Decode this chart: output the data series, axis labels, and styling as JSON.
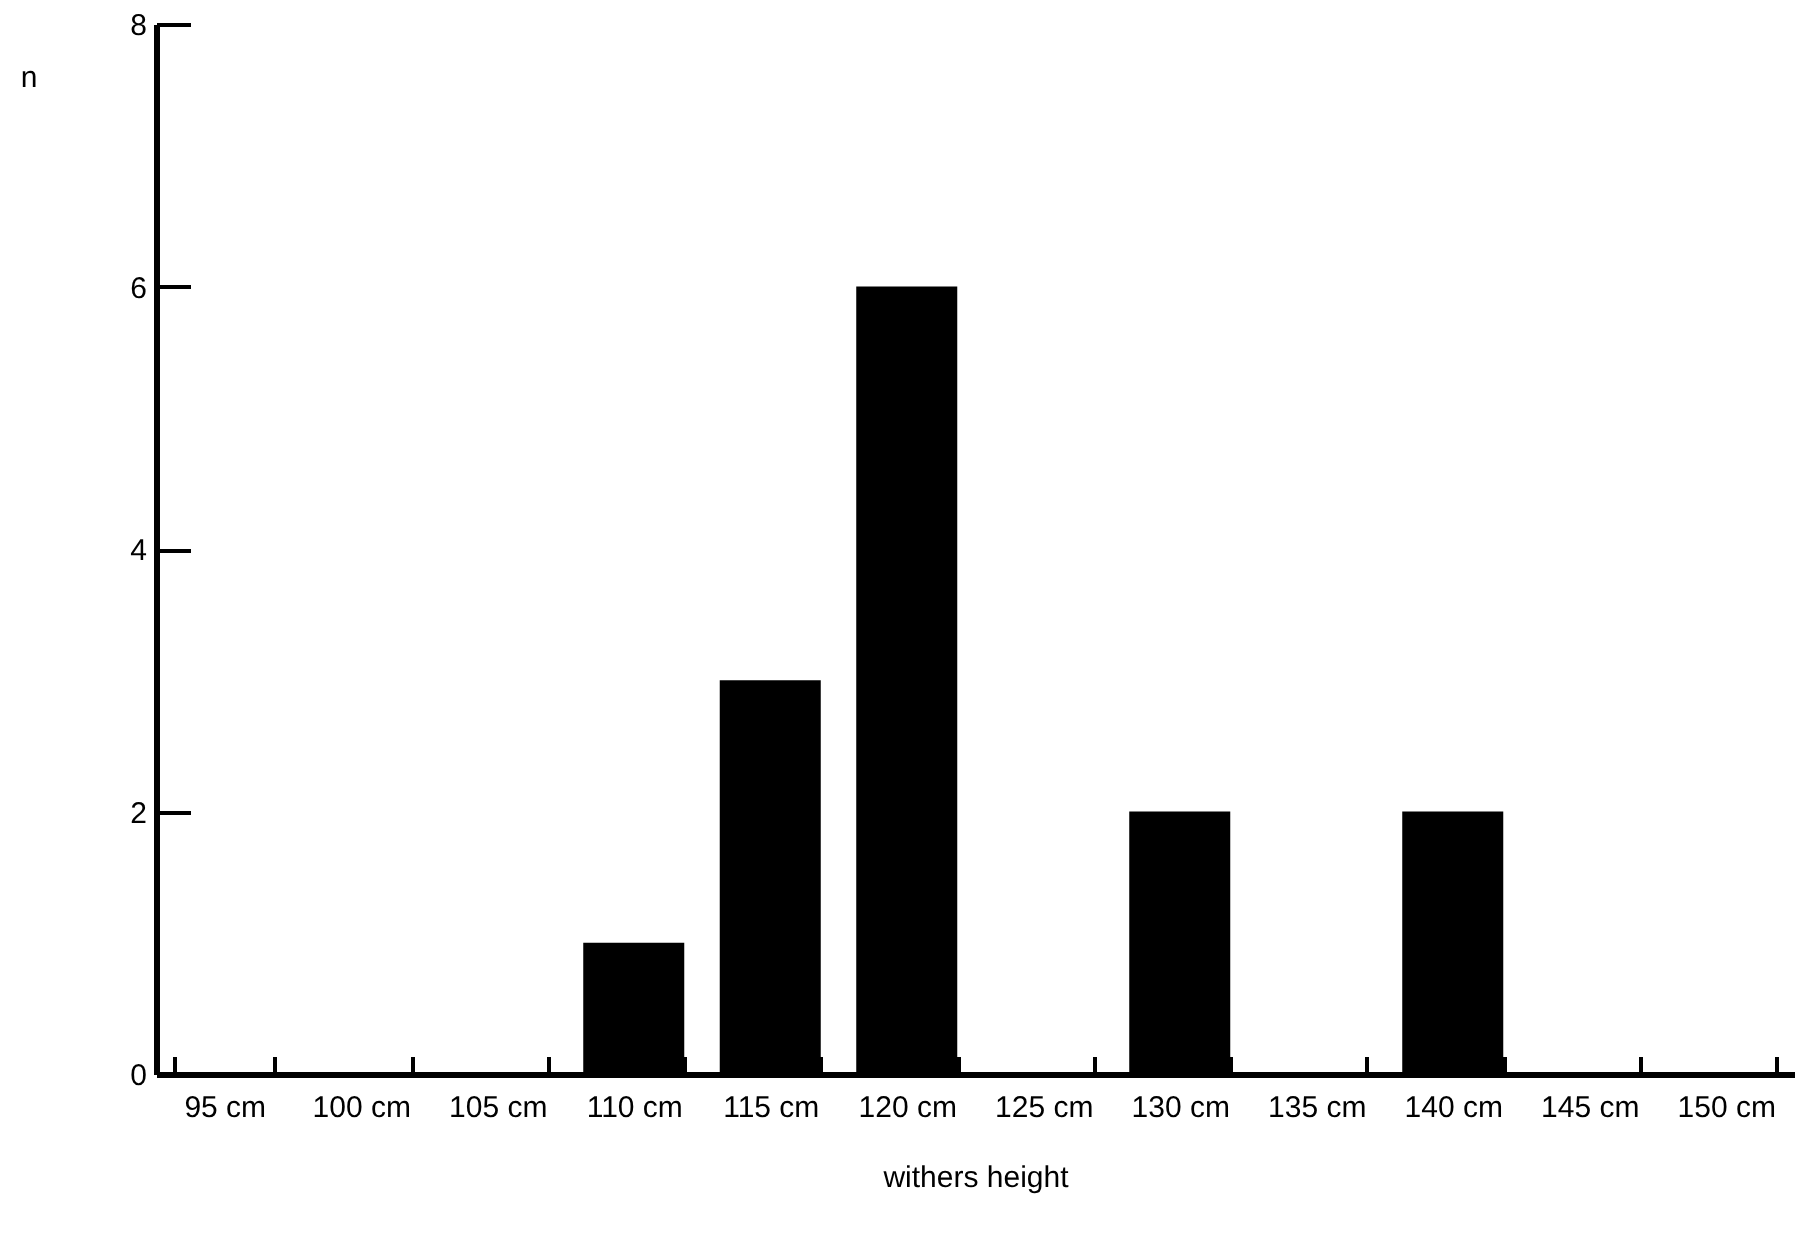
{
  "chart_data": {
    "type": "bar",
    "xlabel": "withers height",
    "ylabel": "n",
    "categories": [
      "95 cm",
      "100 cm",
      "105 cm",
      "110 cm",
      "115 cm",
      "120 cm",
      "125 cm",
      "130 cm",
      "135 cm",
      "140 cm",
      "145 cm",
      "150 cm"
    ],
    "values": [
      0,
      0,
      0,
      1,
      3,
      6,
      0,
      2,
      0,
      2,
      0,
      0
    ],
    "color": "#000000",
    "ylim": [
      0,
      8
    ],
    "yticks": [
      0,
      2,
      4,
      6,
      8
    ],
    "grid": false
  }
}
